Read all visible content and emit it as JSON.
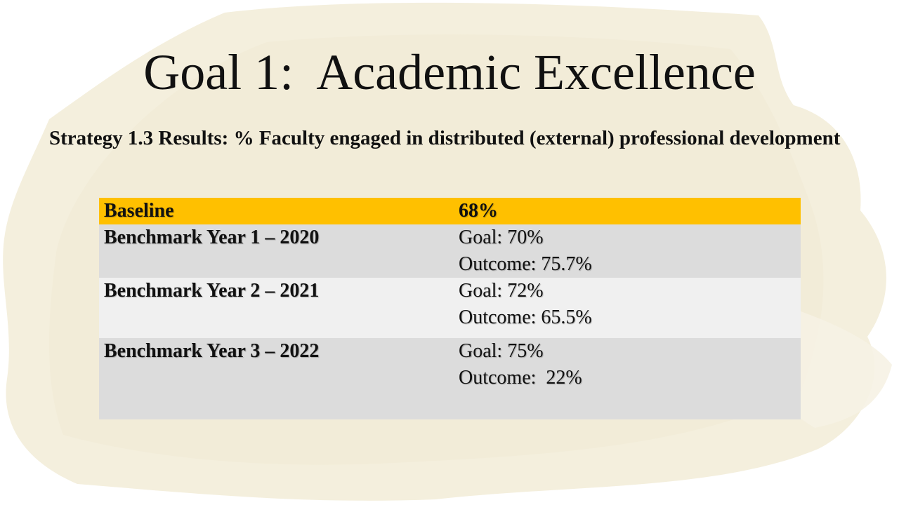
{
  "slide": {
    "title": "Goal 1:  Academic Excellence",
    "subtitle": "Strategy 1.3 Results:  % Faculty engaged in distributed (external) professional development"
  },
  "table": {
    "header": {
      "label": "Baseline",
      "value": "68%"
    },
    "rows": [
      {
        "label": "Benchmark Year 1 – 2020",
        "goal": "Goal: 70%",
        "outcome": "Outcome: 75.7%"
      },
      {
        "label": "Benchmark Year 2 – 2021",
        "goal": "Goal: 72%",
        "outcome": "Outcome: 65.5%"
      },
      {
        "label": "Benchmark Year 3 – 2022",
        "goal": "Goal: 75%",
        "outcome": "Outcome:  22%"
      }
    ]
  },
  "colors": {
    "header_row": "#FFC000",
    "row_shade_dark": "#DCDCDC",
    "row_shade_light": "#F0F0F0",
    "background_wash": "#F3EEDC"
  }
}
